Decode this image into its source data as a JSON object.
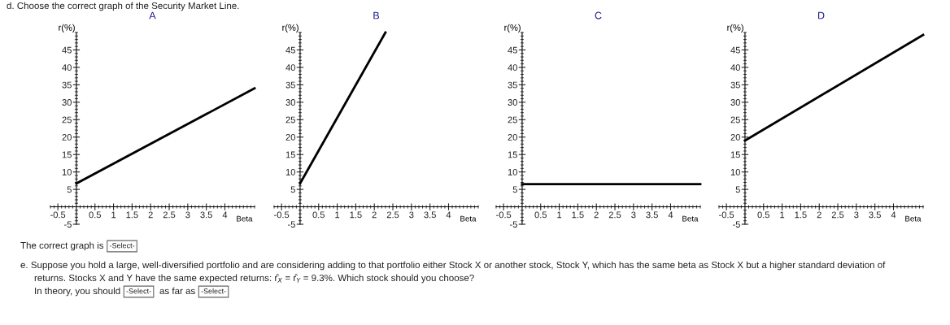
{
  "chart_data": [
    {
      "type": "line",
      "title": "A",
      "xlabel": "Beta",
      "ylabel": "r(%)",
      "xlim": [
        -0.7,
        4.8
      ],
      "ylim": [
        -5,
        50
      ],
      "xticks": [
        -0.5,
        0.5,
        1,
        1.5,
        2,
        2.5,
        3,
        3.5,
        4
      ],
      "yticks": [
        -5,
        5,
        10,
        15,
        20,
        25,
        30,
        35,
        40,
        45
      ],
      "line_style": "solid",
      "series": [
        {
          "color": "#000000",
          "x": [
            0,
            4.8
          ],
          "values": [
            6.7,
            34
          ]
        }
      ],
      "annotations": [
        "d. Choose the correct graph of the Security Market Line.",
        "The correct graph is",
        "-Select-",
        "e. Suppose you hold a large, well-diversified portfolio and are considering adding to that portfolio either Stock X or another stock, Stock Y, which has the same beta as Stock X but a higher standard deviation of",
        "returns. Stocks X and Y have the same expected returns: r̂$_{X}$ = r̂$_{Y}$ = 9.3%. Which stock should you choose?",
        "In theory, you should",
        "-Select-",
        "as far as",
        "-Select-"
      ]
    },
    {
      "type": "line",
      "title": "B",
      "xlabel": "Beta",
      "ylabel": "r(%)",
      "xlim": [
        -0.7,
        4.8
      ],
      "ylim": [
        -5,
        50
      ],
      "xticks": [
        -0.5,
        0.5,
        1,
        1.5,
        2,
        2.5,
        3,
        3.5,
        4
      ],
      "yticks": [
        -5,
        5,
        10,
        15,
        20,
        25,
        30,
        35,
        40,
        45
      ],
      "line_style": "solid",
      "series": [
        {
          "color": "#000000",
          "x": [
            0,
            2.3
          ],
          "values": [
            6.7,
            50
          ]
        }
      ]
    },
    {
      "type": "line",
      "title": "C",
      "xlabel": "Beta",
      "ylabel": "r(%)",
      "xlim": [
        -0.7,
        4.8
      ],
      "ylim": [
        -5,
        50
      ],
      "xticks": [
        -0.5,
        0.5,
        1,
        1.5,
        2,
        2.5,
        3,
        3.5,
        4
      ],
      "yticks": [
        -5,
        5,
        10,
        15,
        20,
        25,
        30,
        35,
        40,
        45
      ],
      "line_style": "solid",
      "series": [
        {
          "color": "#000000",
          "x": [
            0,
            4.8
          ],
          "values": [
            6.5,
            6.5
          ]
        }
      ]
    },
    {
      "type": "line",
      "title": "D",
      "xlabel": "Beta",
      "ylabel": "r(%)",
      "xlim": [
        -0.7,
        4.8
      ],
      "ylim": [
        -5,
        50
      ],
      "xticks": [
        -0.5,
        0.5,
        1,
        1.5,
        2,
        2.5,
        3,
        3.5,
        4
      ],
      "yticks": [
        -5,
        5,
        10,
        15,
        20,
        25,
        30,
        35,
        40,
        45
      ],
      "line_style": "solid",
      "series": [
        {
          "color": "#000000",
          "x": [
            0,
            4.8
          ],
          "values": [
            19,
            49.3
          ]
        }
      ]
    }
  ]
}
